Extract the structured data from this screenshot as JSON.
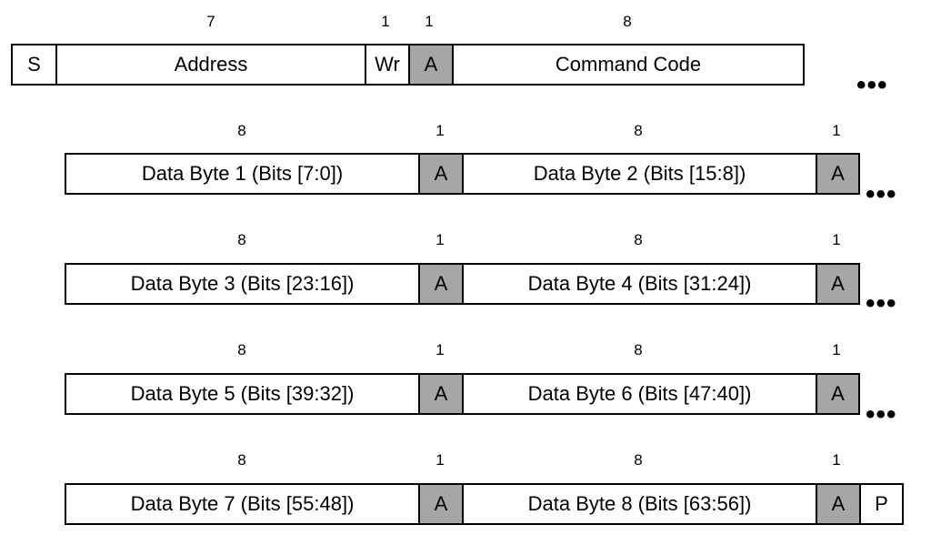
{
  "row0": {
    "bits": [
      "7",
      "1",
      "1",
      "8"
    ],
    "cells": [
      "S",
      "Address",
      "Wr",
      "A",
      "Command Code"
    ]
  },
  "data_rows": [
    {
      "bits": [
        "8",
        "1",
        "8",
        "1"
      ],
      "cells": [
        "Data Byte 1 (Bits [7:0])",
        "A",
        "Data Byte 2 (Bits [15:8])",
        "A"
      ]
    },
    {
      "bits": [
        "8",
        "1",
        "8",
        "1"
      ],
      "cells": [
        "Data Byte 3 (Bits [23:16])",
        "A",
        "Data Byte 4 (Bits [31:24])",
        "A"
      ]
    },
    {
      "bits": [
        "8",
        "1",
        "8",
        "1"
      ],
      "cells": [
        "Data Byte 5 (Bits [39:32])",
        "A",
        "Data Byte 6 (Bits [47:40])",
        "A"
      ]
    },
    {
      "bits": [
        "8",
        "1",
        "8",
        "1"
      ],
      "cells": [
        "Data Byte 7 (Bits [55:48])",
        "A",
        "Data Byte 8 (Bits [63:56])",
        "A",
        "P"
      ]
    }
  ],
  "continuation": "•••",
  "colors": {
    "ack_fill": "#a6a6a6",
    "line": "#000000"
  }
}
